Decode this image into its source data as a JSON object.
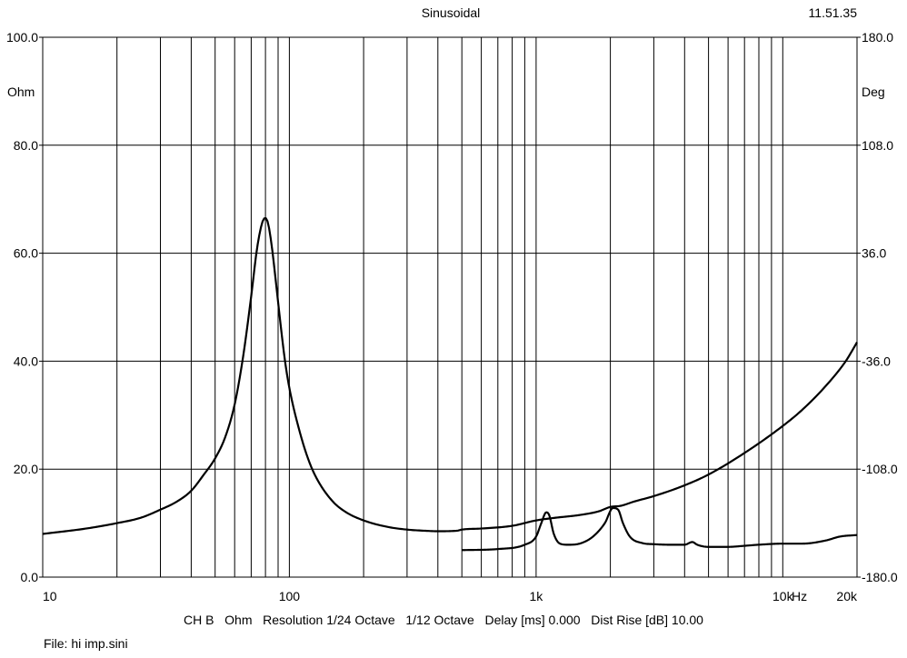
{
  "header": {
    "title": "Sinusoidal",
    "time": "11.51.35"
  },
  "footer": {
    "info": "CH B   Ohm   Resolution 1/24 Octave   1/12 Octave   Delay [ms] 0.000   Dist Rise [dB] 10.00",
    "file": "File: hi imp.sini"
  },
  "chart_data": {
    "type": "line",
    "title": "Sinusoidal",
    "xscale": "log",
    "xlim": [
      10,
      20000
    ],
    "ylim": [
      0,
      100
    ],
    "y2lim": [
      -180,
      180
    ],
    "ylabel": "Ohm",
    "y2label": "Deg",
    "xunit": "Hz",
    "grid": true,
    "x_ticks": [
      "10",
      "100",
      "1k",
      "10k",
      "20k"
    ],
    "y_ticks": [
      "0.0",
      "20.0",
      "40.0",
      "60.0",
      "80.0",
      "100.0"
    ],
    "y2_ticks": [
      "-180.0",
      "-108.0",
      "-36.0",
      "36.0",
      "108.0",
      "180.0"
    ],
    "series": [
      {
        "x": [
          10,
          15,
          20,
          25,
          30,
          35,
          40,
          45,
          50,
          55,
          60,
          65,
          70,
          74,
          78,
          80,
          82,
          85,
          88,
          92,
          96,
          100,
          110,
          120,
          130,
          150,
          170,
          200,
          250,
          300,
          350,
          400,
          480,
          500,
          600,
          800,
          1000,
          1200,
          1500,
          1800,
          2000,
          2200,
          2500,
          3000,
          4000,
          5000,
          7000,
          10000,
          12000,
          15000,
          18000,
          20000
        ],
        "y": [
          8,
          9,
          10,
          11,
          12.5,
          14,
          16,
          19,
          22,
          26,
          32,
          41,
          52,
          61,
          66,
          66.5,
          65.5,
          61,
          55,
          47,
          40,
          35,
          27,
          21.5,
          18,
          14,
          12,
          10.5,
          9.3,
          8.8,
          8.6,
          8.5,
          8.6,
          8.8,
          9,
          9.5,
          10.5,
          11,
          11.5,
          12.2,
          13,
          13.2,
          14,
          15,
          17,
          19,
          23,
          28,
          31,
          35.5,
          40,
          43.5
        ]
      },
      {
        "x": [
          500,
          700,
          900,
          1000,
          1050,
          1100,
          1130,
          1180,
          1250,
          1350,
          1500,
          1700,
          1900,
          2050,
          2150,
          2250,
          2400,
          2700,
          3000,
          3500,
          4000,
          4300,
          4500,
          5000,
          6000,
          7000,
          8000,
          10000,
          12000,
          15000,
          17000,
          20000
        ],
        "y": [
          5,
          5.2,
          6,
          7.5,
          10,
          12,
          11.5,
          8,
          6.2,
          6,
          6.2,
          7.5,
          10,
          12.8,
          12.5,
          10,
          7.5,
          6.3,
          6.1,
          6,
          6,
          6.5,
          6,
          5.6,
          5.6,
          5.8,
          6,
          6.2,
          6.2,
          6.8,
          7.5,
          7.8
        ]
      }
    ]
  }
}
